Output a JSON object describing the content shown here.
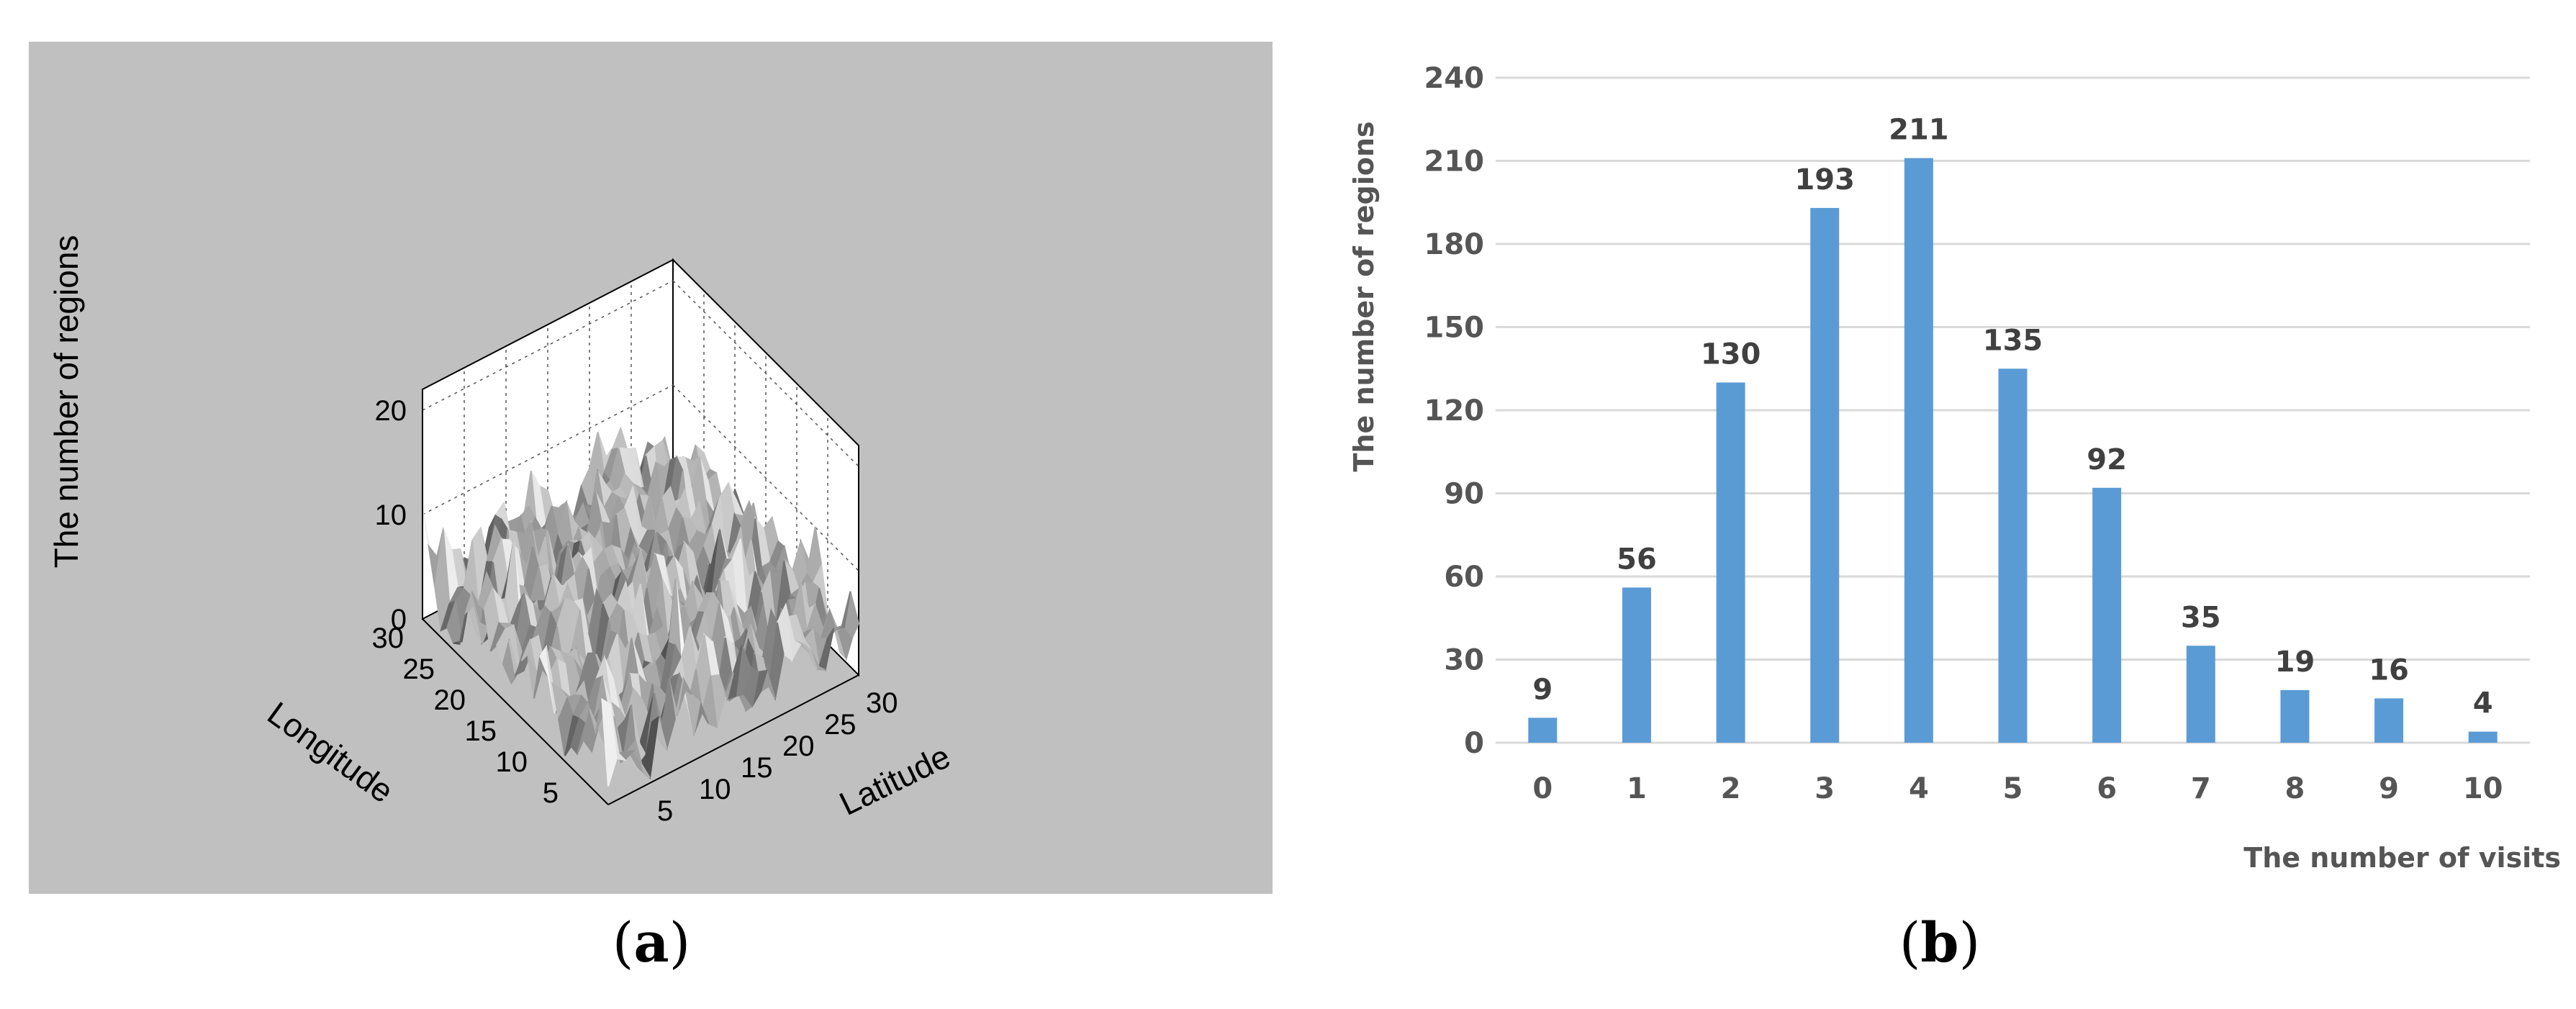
{
  "captions": {
    "a": "a",
    "b": "b"
  },
  "surface_plot": {
    "type": "surface",
    "zlabel": "The number of regions",
    "xlabel": "Longitude",
    "ylabel": "Latitude",
    "z_ticks": [
      "0",
      "10",
      "20"
    ],
    "longitude_ticks": [
      "5",
      "10",
      "15",
      "20",
      "25",
      "30"
    ],
    "latitude_ticks": [
      "5",
      "10",
      "15",
      "20",
      "25",
      "30"
    ],
    "x_range": [
      1,
      30
    ],
    "y_range": [
      1,
      30
    ],
    "z_range": [
      0,
      20
    ],
    "colormap": "gray",
    "background": "#c0c0c0"
  },
  "chart_data": {
    "type": "bar",
    "categories": [
      "0",
      "1",
      "2",
      "3",
      "4",
      "5",
      "6",
      "7",
      "8",
      "9",
      "10"
    ],
    "values": [
      9,
      56,
      130,
      193,
      211,
      135,
      92,
      35,
      19,
      16,
      4
    ],
    "data_labels": [
      "9",
      "56",
      "130",
      "193",
      "211",
      "135",
      "92",
      "35",
      "19",
      "16",
      "4"
    ],
    "xlabel": "The number of visits",
    "ylabel": "The number of regions",
    "ylim": [
      0,
      240
    ],
    "y_ticks": [
      "0",
      "30",
      "60",
      "90",
      "120",
      "150",
      "180",
      "210",
      "240"
    ],
    "grid": true,
    "bar_color": "#5b9bd5",
    "grid_color": "#d9d9d9"
  }
}
